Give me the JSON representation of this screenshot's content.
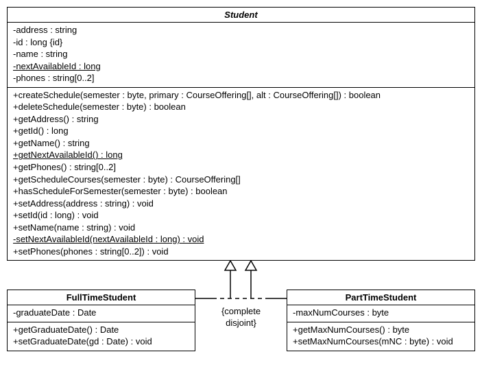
{
  "diagram": {
    "type": "uml-class-inheritance",
    "background_color": "#ffffff",
    "line_color": "#000000",
    "font_family": "Arial",
    "font_size_pt": 10,
    "constraint_text_1": "{complete",
    "constraint_text_2": "disjoint}",
    "generalization_style": "hollow-triangle",
    "set_line_style": "dashed"
  },
  "student": {
    "name": "Student",
    "abstract": true,
    "attributes": [
      {
        "text": "-address : string",
        "static": false
      },
      {
        "text": "-id : long {id}",
        "static": false
      },
      {
        "text": "-name : string",
        "static": false
      },
      {
        "text": "-nextAvailableId : long",
        "static": true
      },
      {
        "text": "-phones : string[0..2]",
        "static": false
      }
    ],
    "operations": [
      {
        "text": "+createSchedule(semester : byte, primary : CourseOffering[], alt : CourseOffering[]) : boolean",
        "static": false
      },
      {
        "text": "+deleteSchedule(semester : byte) : boolean",
        "static": false
      },
      {
        "text": "+getAddress() : string",
        "static": false
      },
      {
        "text": "+getId() : long",
        "static": false
      },
      {
        "text": "+getName() : string",
        "static": false
      },
      {
        "text": "+getNextAvailableId() : long",
        "static": true
      },
      {
        "text": "+getPhones() : string[0..2]",
        "static": false
      },
      {
        "text": "+getScheduleCourses(semester : byte) : CourseOffering[]",
        "static": false
      },
      {
        "text": "+hasScheduleForSemester(semester : byte) : boolean",
        "static": false
      },
      {
        "text": "+setAddress(address : string) : void",
        "static": false
      },
      {
        "text": "+setId(id : long) : void",
        "static": false
      },
      {
        "text": "+setName(name : string) : void",
        "static": false
      },
      {
        "text": "-setNextAvailableId(nextAvailableId : long) : void",
        "static": true
      },
      {
        "text": "+setPhones(phones : string[0..2]) : void",
        "static": false
      }
    ]
  },
  "fulltime": {
    "name": "FullTimeStudent",
    "attributes": [
      {
        "text": "-graduateDate : Date",
        "static": false
      }
    ],
    "operations": [
      {
        "text": "+getGraduateDate() : Date",
        "static": false
      },
      {
        "text": "+setGraduateDate(gd : Date) : void",
        "static": false
      }
    ]
  },
  "parttime": {
    "name": "PartTimeStudent",
    "attributes": [
      {
        "text": "-maxNumCourses : byte",
        "static": false
      }
    ],
    "operations": [
      {
        "text": "+getMaxNumCourses() : byte",
        "static": false
      },
      {
        "text": "+setMaxNumCourses(mNC : byte) : void",
        "static": false
      }
    ]
  }
}
